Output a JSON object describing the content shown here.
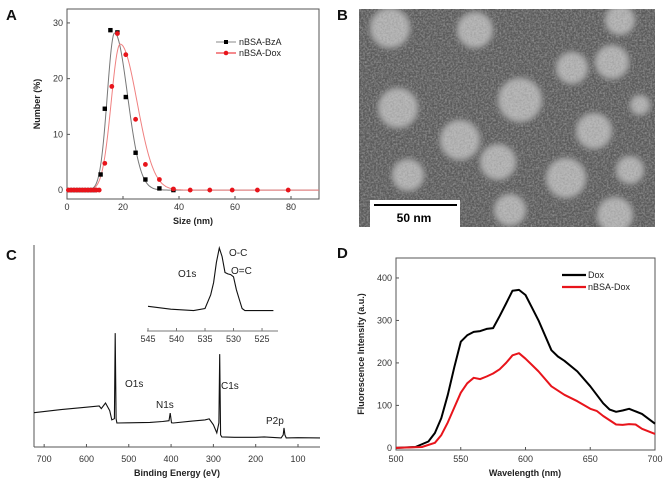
{
  "panels": {
    "a": "A",
    "b": "B",
    "c": "C",
    "d": "D"
  },
  "chart_data": [
    {
      "panel": "A",
      "type": "scatter",
      "xlabel": "Size (nm)",
      "ylabel": "Number (%)",
      "xlim": [
        0,
        90
      ],
      "ylim": [
        -1.6,
        32.5
      ],
      "xticks": [
        0,
        20,
        40,
        60,
        80
      ],
      "yticks": [
        0,
        10,
        20,
        30
      ],
      "grid": false,
      "legend": "top-right",
      "series": [
        {
          "name": "nBSA-BzA",
          "color": "#000000",
          "marker": "square",
          "x": [
            1,
            2,
            3,
            4,
            5,
            6,
            7,
            8,
            9,
            10,
            12,
            13.5,
            15.5,
            18,
            21,
            24.5,
            28,
            33,
            38
          ],
          "y": [
            0,
            0,
            0,
            0,
            0,
            0,
            0,
            0,
            0,
            0,
            2.8,
            14.6,
            28.7,
            28.3,
            16.7,
            6.7,
            1.9,
            0.3,
            0
          ],
          "fit": {
            "peak": 17,
            "height": 28.2,
            "width_left": 2.6,
            "width_right": 4.6
          }
        },
        {
          "name": "nBSA-Dox",
          "color": "#e8141b",
          "marker": "circle",
          "x": [
            0.5,
            1.5,
            2.5,
            3.5,
            4.5,
            5.5,
            6.5,
            7.5,
            8.5,
            9.5,
            10.5,
            11.5,
            13.5,
            16,
            18,
            21,
            24.5,
            28,
            33,
            38,
            44,
            51,
            59,
            68,
            79
          ],
          "y": [
            0,
            0,
            0,
            0,
            0,
            0,
            0,
            0,
            0,
            0,
            0,
            0,
            4.8,
            18.6,
            28.1,
            24.3,
            12.7,
            4.6,
            1.9,
            0.2,
            0,
            0,
            0,
            0,
            0
          ],
          "fit": {
            "peak": 19,
            "height": 26.2,
            "width_left": 3.2,
            "width_right": 6.0
          }
        }
      ]
    },
    {
      "panel": "B",
      "type": "image",
      "scale_bar": "50 nm"
    },
    {
      "panel": "C",
      "type": "line",
      "xlabel": "Binding Energy (eV)",
      "xlim": [
        724,
        48
      ],
      "xticks": [
        700,
        600,
        500,
        400,
        300,
        200,
        100
      ],
      "ylim": [
        0,
        100
      ],
      "series": [
        {
          "x": [
            724,
            660,
            600,
            570,
            565,
            555,
            545,
            540,
            534,
            532,
            530,
            528,
            500,
            450,
            420,
            405,
            402,
            399,
            395,
            350,
            320,
            310,
            300,
            292,
            287,
            285,
            283,
            280,
            250,
            200,
            180,
            140,
            135,
            133,
            131,
            128,
            100,
            48
          ],
          "y": [
            17,
            18.5,
            19.7,
            20.3,
            19,
            21.8,
            18,
            13.4,
            14,
            56.4,
            14,
            11.9,
            12,
            12.2,
            12.6,
            13,
            16.8,
            12,
            11.9,
            12.8,
            13.4,
            13.9,
            11,
            7,
            12,
            46,
            6,
            5,
            4.8,
            4.8,
            5,
            4.5,
            6,
            9.4,
            6,
            4.5,
            4.6,
            4.5
          ]
        }
      ],
      "annotations": [
        "O1s",
        "N1s",
        "C1s",
        "P2p"
      ],
      "inset": {
        "xlim": [
          545,
          522.2
        ],
        "xticks": [
          545,
          540,
          535,
          530,
          525
        ],
        "ylim": [
          0,
          100
        ],
        "x": [
          545,
          541,
          537,
          535,
          534,
          533.5,
          533,
          532.5,
          532,
          531.5,
          531,
          530.5,
          530,
          529.5,
          529,
          528.5,
          528,
          525,
          523
        ],
        "y": [
          19,
          15,
          13,
          16,
          35,
          52,
          80,
          100,
          88,
          66,
          64,
          63,
          60,
          42,
          29,
          16,
          13,
          13,
          13
        ],
        "annotations": [
          "O1s",
          "O-C",
          "O=C"
        ]
      }
    },
    {
      "panel": "D",
      "type": "line",
      "xlabel": "Wavelength (nm)",
      "ylabel": "Fluorescence Intensity (a.u.)",
      "xlim": [
        500,
        700
      ],
      "ylim": [
        -5,
        447
      ],
      "xticks": [
        500,
        550,
        600,
        650,
        700
      ],
      "yticks": [
        0,
        100,
        200,
        300,
        400
      ],
      "grid": false,
      "legend": "top-right",
      "series": [
        {
          "name": "Dox",
          "color": "#000000",
          "x": [
            500,
            515,
            525,
            530,
            535,
            540,
            545,
            550,
            555,
            560,
            565,
            570,
            575,
            580,
            585,
            590,
            595,
            600,
            605,
            610,
            620,
            625,
            630,
            640,
            650,
            660,
            665,
            670,
            675,
            680,
            690,
            700
          ],
          "y": [
            0,
            2,
            15,
            35,
            70,
            125,
            190,
            250,
            265,
            273,
            275,
            280,
            282,
            310,
            340,
            370,
            372,
            360,
            330,
            300,
            230,
            215,
            205,
            180,
            145,
            105,
            90,
            85,
            88,
            92,
            80,
            57
          ]
        },
        {
          "name": "nBSA-Dox",
          "color": "#e8141b",
          "x": [
            500,
            520,
            530,
            535,
            540,
            545,
            550,
            555,
            560,
            565,
            570,
            575,
            580,
            585,
            590,
            595,
            600,
            605,
            610,
            620,
            630,
            640,
            650,
            655,
            660,
            670,
            675,
            680,
            685,
            690,
            700
          ],
          "y": [
            0,
            2,
            12,
            30,
            60,
            95,
            130,
            152,
            165,
            162,
            168,
            175,
            185,
            200,
            218,
            223,
            210,
            195,
            180,
            145,
            125,
            110,
            92,
            87,
            75,
            55,
            54,
            56,
            55,
            45,
            33
          ]
        }
      ]
    }
  ],
  "colors": {
    "black": "#000000",
    "red": "#e8141b"
  }
}
